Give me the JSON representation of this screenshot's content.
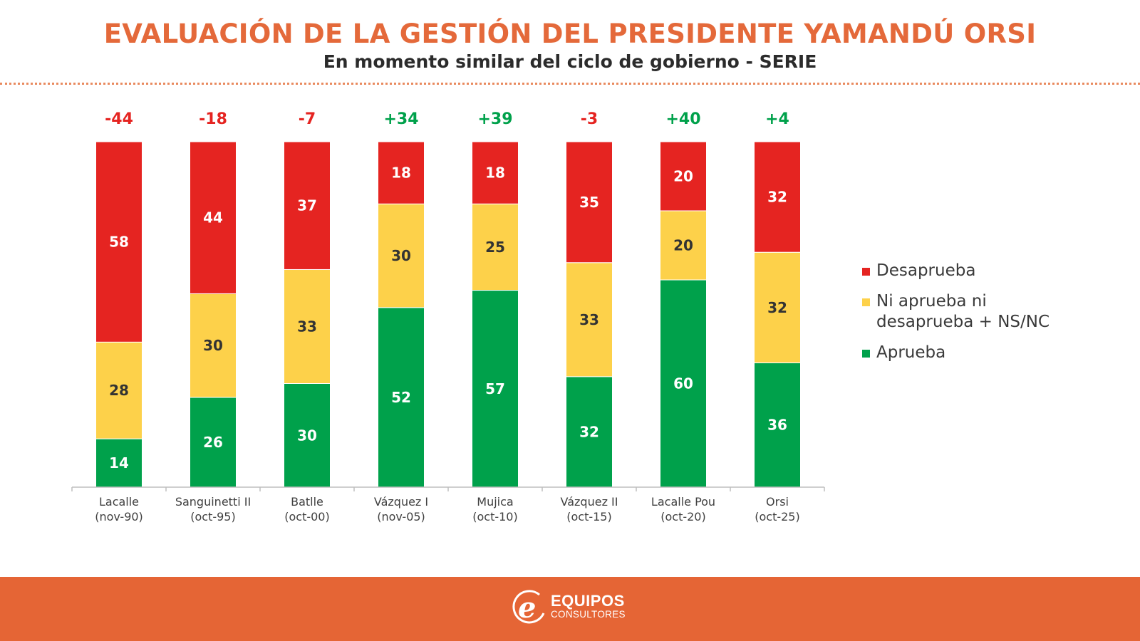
{
  "header": {
    "title": "EVALUACIÓN DE LA GESTIÓN DEL PRESIDENTE YAMANDÚ ORSI",
    "subtitle": "En momento similar del ciclo de gobierno - SERIE"
  },
  "colors": {
    "title": "#e4693a",
    "desaprueba": "#e52421",
    "ni": "#fdd14a",
    "aprueba": "#00a14b",
    "net_negative": "#e52421",
    "net_positive": "#00a14b",
    "footer": "#e56535"
  },
  "chart_data": {
    "type": "bar",
    "stacked": true,
    "title": "EVALUACIÓN DE LA GESTIÓN DEL PRESIDENTE YAMANDÚ ORSI",
    "subtitle": "En momento similar del ciclo de gobierno - SERIE",
    "xlabel": "",
    "ylabel": "",
    "ylim": [
      0,
      100
    ],
    "grid": false,
    "legend_position": "right",
    "categories": [
      [
        "Lacalle",
        "(nov-90)"
      ],
      [
        "Sanguinetti II",
        "(oct-95)"
      ],
      [
        "Batlle",
        "(oct-00)"
      ],
      [
        "Vázquez I",
        "(nov-05)"
      ],
      [
        "Mujica",
        "(oct-10)"
      ],
      [
        "Vázquez II",
        "(oct-15)"
      ],
      [
        "Lacalle Pou",
        "(oct-20)"
      ],
      [
        "Orsi",
        "(oct-25)"
      ]
    ],
    "series": [
      {
        "name": "Aprueba",
        "key": "aprueba",
        "values": [
          14,
          26,
          30,
          52,
          57,
          32,
          60,
          36
        ]
      },
      {
        "name": "Ni aprueba ni desaprueba + NS/NC",
        "key": "ni",
        "values": [
          28,
          30,
          33,
          30,
          25,
          33,
          20,
          32
        ]
      },
      {
        "name": "Desaprueba",
        "key": "desaprueba",
        "values": [
          58,
          44,
          37,
          18,
          18,
          35,
          20,
          32
        ]
      }
    ],
    "net_labels": [
      "-44",
      "-18",
      "-7",
      "+34",
      "+39",
      "-3",
      "+40",
      "+4"
    ]
  },
  "legend": {
    "items": [
      {
        "label": "Desaprueba",
        "key": "desaprueba"
      },
      {
        "label": "Ni aprueba ni desaprueba + NS/NC",
        "key": "ni"
      },
      {
        "label": "Aprueba",
        "key": "aprueba"
      }
    ]
  },
  "footer": {
    "brand_line1": "EQUIPOS",
    "brand_line2": "CONSULTORES",
    "logo_icon": "e-logo-icon"
  }
}
